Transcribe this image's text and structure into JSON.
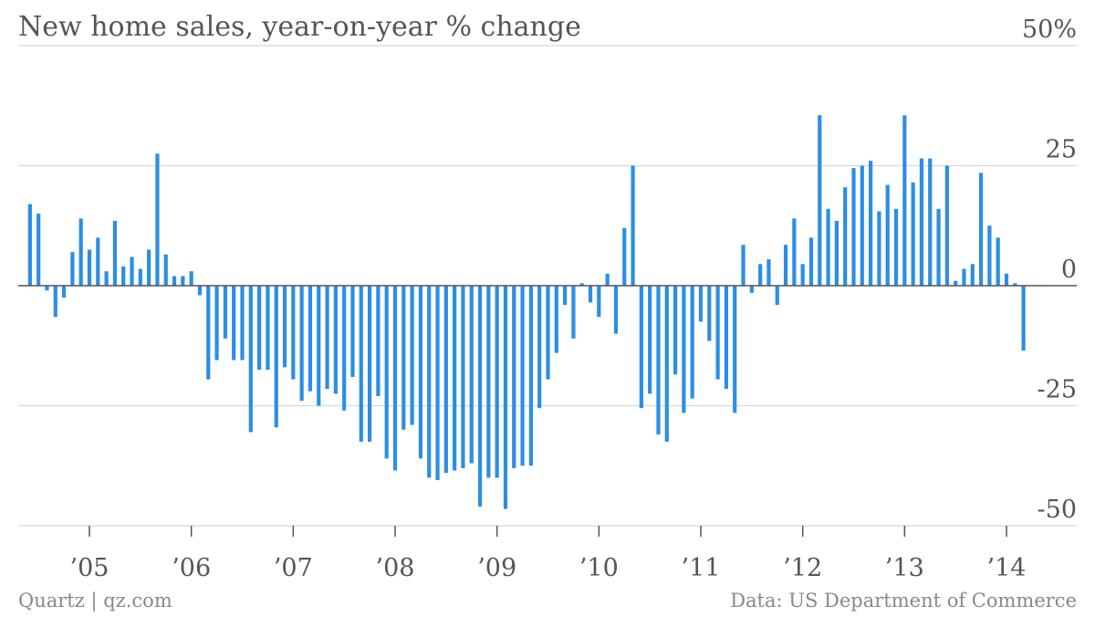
{
  "header": {
    "title": "New home sales, year-on-year % change"
  },
  "footer": {
    "source_left": "Quartz | qz.com",
    "source_right": "Data: US Department of Commerce"
  },
  "colors": {
    "bar": "#2b8ee6",
    "grid": "#dddddd",
    "baseline": "#555555"
  },
  "chart_data": {
    "type": "bar",
    "title": "New home sales, year-on-year % change",
    "xlabel": "",
    "ylabel": "",
    "ylim": [
      -50,
      50
    ],
    "y_ticks": [
      {
        "value": 50,
        "label": "50%"
      },
      {
        "value": 25,
        "label": "25"
      },
      {
        "value": 0,
        "label": "0"
      },
      {
        "value": -25,
        "label": "-25"
      },
      {
        "value": -50,
        "label": "-50"
      }
    ],
    "x_ticks": [
      {
        "date": "2005-01",
        "label": "’05"
      },
      {
        "date": "2006-01",
        "label": "’06"
      },
      {
        "date": "2007-01",
        "label": "’07"
      },
      {
        "date": "2008-01",
        "label": "’08"
      },
      {
        "date": "2009-01",
        "label": "’09"
      },
      {
        "date": "2010-01",
        "label": "’10"
      },
      {
        "date": "2011-01",
        "label": "’11"
      },
      {
        "date": "2012-01",
        "label": "’12"
      },
      {
        "date": "2013-01",
        "label": "’13"
      },
      {
        "date": "2014-01",
        "label": "’14"
      }
    ],
    "grid": true,
    "legend": "none",
    "series": [
      {
        "start": "2004-06",
        "frequency": "monthly",
        "values": [
          17,
          15,
          -1,
          -6.5,
          -2.5,
          7,
          14,
          7.5,
          10,
          3,
          13.5,
          4,
          6,
          3.5,
          7.5,
          27.5,
          6.5,
          2,
          2,
          3,
          -2,
          -19.5,
          -15.5,
          -11,
          -15.5,
          -15.5,
          -30.5,
          -17.5,
          -17.5,
          -29.5,
          -17,
          -19.5,
          -24,
          -22,
          -25,
          -21.5,
          -22.5,
          -26,
          -19,
          -32.5,
          -32.5,
          -23,
          -36,
          -38.5,
          -30,
          -29,
          -36,
          -40,
          -40.5,
          -39,
          -38.5,
          -38,
          -37,
          -46,
          -40,
          -40,
          -46.5,
          -38,
          -37.5,
          -37.5,
          -25.5,
          -19.5,
          -14,
          -4,
          -11,
          0.5,
          -3.5,
          -6.5,
          2.5,
          -10,
          12,
          25,
          -25.5,
          -22.5,
          -31,
          -32.5,
          -18.5,
          -26.5,
          -23.5,
          -7.5,
          -11.5,
          -19.5,
          -21.5,
          -26.5,
          8.5,
          -1.5,
          4.5,
          5.5,
          -4,
          8.5,
          14,
          4.5,
          10,
          35.5,
          16,
          13.5,
          20.5,
          24.5,
          25,
          26,
          15.5,
          21,
          16,
          35.5,
          21.5,
          26.5,
          26.5,
          16,
          25,
          1,
          3.5,
          4.5,
          23.5,
          12.5,
          10,
          2.5,
          0.5,
          -13.5
        ]
      }
    ]
  }
}
